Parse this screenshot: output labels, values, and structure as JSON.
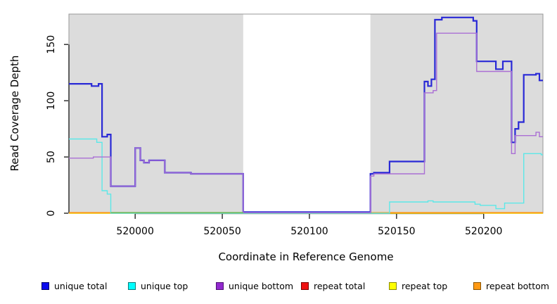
{
  "chart_data": {
    "type": "line",
    "step": true,
    "title": "",
    "xlabel": "Coordinate in Reference Genome",
    "ylabel": "Read Coverage Depth",
    "xlim": [
      519962,
      520234
    ],
    "ylim": [
      0,
      177
    ],
    "x_ticks": [
      520000,
      520050,
      520100,
      520150,
      520200
    ],
    "y_ticks": [
      0,
      50,
      100,
      150
    ],
    "grid": false,
    "legend_position": "bottom",
    "background_regions": [
      {
        "name": "left-highlight",
        "x0": 519962,
        "x1": 520062,
        "color": "#DCDCDC"
      },
      {
        "name": "right-highlight",
        "x0": 520135,
        "x1": 520234,
        "color": "#DCDCDC"
      }
    ],
    "series": [
      {
        "name": "repeat total",
        "color": "#DD2222",
        "width": 1.4,
        "points": [
          [
            519962,
            0
          ]
        ]
      },
      {
        "name": "repeat top",
        "color": "#EEee22",
        "width": 1.4,
        "points": [
          [
            519962,
            0
          ]
        ]
      },
      {
        "name": "repeat bottom",
        "color": "#FF9913",
        "width": 1.7,
        "points": [
          [
            519962,
            0.5
          ]
        ]
      },
      {
        "name": "unique total",
        "color": "#2929D6",
        "width": 2.2,
        "points": [
          [
            519962,
            115
          ],
          [
            519975,
            113
          ],
          [
            519979,
            115
          ],
          [
            519981,
            68
          ],
          [
            519984,
            70
          ],
          [
            519986,
            24
          ],
          [
            520000,
            58
          ],
          [
            520003,
            47
          ],
          [
            520005,
            45
          ],
          [
            520008,
            47
          ],
          [
            520017,
            36
          ],
          [
            520032,
            35
          ],
          [
            520062,
            1
          ],
          [
            520135,
            35
          ],
          [
            520137,
            36
          ],
          [
            520146,
            46
          ],
          [
            520166,
            117
          ],
          [
            520168,
            113
          ],
          [
            520170,
            119
          ],
          [
            520172,
            172
          ],
          [
            520176,
            174
          ],
          [
            520194,
            171
          ],
          [
            520196,
            135
          ],
          [
            520207,
            128
          ],
          [
            520211,
            135
          ],
          [
            520216,
            63
          ],
          [
            520218,
            75
          ],
          [
            520220,
            81
          ],
          [
            520223,
            123
          ],
          [
            520230,
            124
          ],
          [
            520232,
            118
          ]
        ]
      },
      {
        "name": "unique top",
        "color": "#5CE8E8",
        "width": 1.4,
        "points": [
          [
            519962,
            66
          ],
          [
            519978,
            63
          ],
          [
            519981,
            20
          ],
          [
            519984,
            17
          ],
          [
            519986,
            0
          ],
          [
            520146,
            10
          ],
          [
            520168,
            11
          ],
          [
            520171,
            10
          ],
          [
            520195,
            8
          ],
          [
            520198,
            7
          ],
          [
            520207,
            4
          ],
          [
            520212,
            9
          ],
          [
            520223,
            53
          ],
          [
            520233,
            52
          ]
        ]
      },
      {
        "name": "unique bottom",
        "color": "#AA6FD4",
        "width": 1.4,
        "points": [
          [
            519962,
            49
          ],
          [
            519976,
            50
          ],
          [
            519986,
            24
          ],
          [
            520000,
            58
          ],
          [
            520003,
            47
          ],
          [
            520005,
            45
          ],
          [
            520008,
            47
          ],
          [
            520017,
            36
          ],
          [
            520032,
            35
          ],
          [
            520062,
            0.5
          ],
          [
            520135,
            33
          ],
          [
            520137,
            35
          ],
          [
            520166,
            107
          ],
          [
            520171,
            109
          ],
          [
            520173,
            160
          ],
          [
            520196,
            126
          ],
          [
            520216,
            53
          ],
          [
            520218,
            69
          ],
          [
            520230,
            72
          ],
          [
            520232,
            68
          ]
        ]
      }
    ],
    "baseline_overlap": {
      "x0": 519986,
      "x1": 520062,
      "y": 0.5,
      "color": "#69BE69"
    }
  },
  "legend": {
    "items": [
      {
        "label": "unique total",
        "fill": "#0A0AEE",
        "border": "#000066"
      },
      {
        "label": "unique top",
        "fill": "#00FFFF",
        "border": "#0B7A7A"
      },
      {
        "label": "unique bottom",
        "fill": "#9229CF",
        "border": "#4E1173"
      },
      {
        "label": "repeat total",
        "fill": "#EE1111",
        "border": "#7A0000"
      },
      {
        "label": "repeat top",
        "fill": "#FFFF00",
        "border": "#8A8A00"
      },
      {
        "label": "repeat bottom",
        "fill": "#FF9913",
        "border": "#8A5400"
      }
    ]
  }
}
